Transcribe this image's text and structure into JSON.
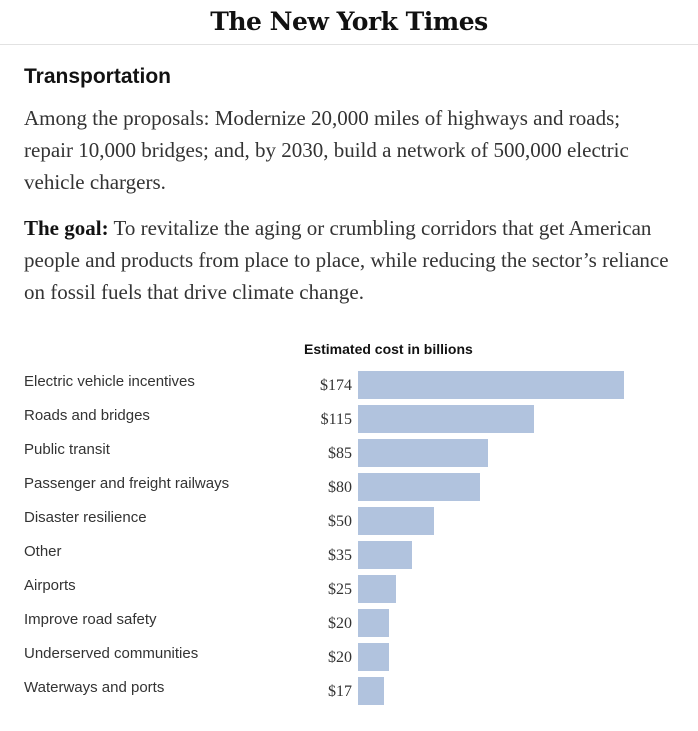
{
  "masthead": {
    "title": "The New York Times"
  },
  "article": {
    "section_title": "Transportation",
    "para1": "Among the proposals: Modernize 20,000 miles of highways and roads; repair 10,000 bridges; and, by 2030, build a network of 500,000 electric vehicle chargers.",
    "para2_lead": "The goal:",
    "para2_text": " To revitalize the aging or crumbling corridors that get American people and products from place to place, while reducing the sector’s reliance on fossil fuels that drive climate change."
  },
  "chart_data": {
    "type": "bar",
    "orientation": "horizontal",
    "title": "Estimated cost in billions",
    "xlabel": "",
    "ylabel": "",
    "grid": false,
    "bar_color": "#b1c3de",
    "categories": [
      "Electric vehicle incentives",
      "Roads and bridges",
      "Public transit",
      "Passenger and freight railways",
      "Disaster resilience",
      "Other",
      "Airports",
      "Improve road safety",
      "Underserved communities",
      "Waterways and ports"
    ],
    "values": [
      174,
      115,
      85,
      80,
      50,
      35,
      25,
      20,
      20,
      17
    ],
    "value_labels": [
      "$174",
      "$115",
      "$85",
      "$80",
      "$50",
      "$35",
      "$25",
      "$20",
      "$20",
      "$17"
    ],
    "xlim": [
      0,
      174
    ]
  }
}
